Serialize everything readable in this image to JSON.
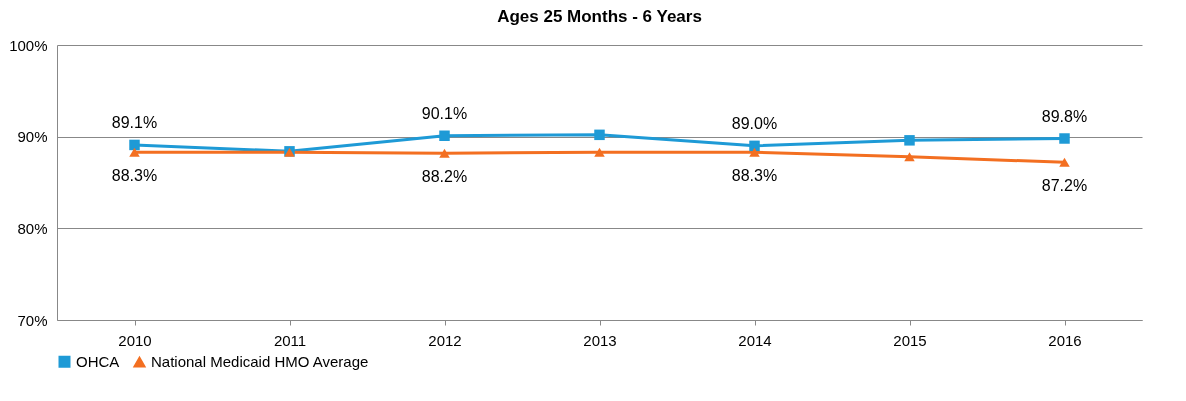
{
  "chart_data": {
    "type": "line",
    "title": "Ages 25 Months - 6 Years",
    "categories": [
      "2010",
      "2011",
      "2012",
      "2013",
      "2014",
      "2015",
      "2016"
    ],
    "series": [
      {
        "name": "OHCA",
        "color": "#1e9ad6",
        "marker": "square",
        "values": [
          89.1,
          88.4,
          90.1,
          90.2,
          89.0,
          89.6,
          89.8
        ],
        "value_labels": [
          "89.1%",
          null,
          "90.1%",
          null,
          "89.0%",
          null,
          "89.8%"
        ]
      },
      {
        "name": "National Medicaid HMO Average",
        "color": "#f36f21",
        "marker": "triangle",
        "values": [
          88.3,
          88.3,
          88.2,
          88.3,
          88.3,
          87.8,
          87.2
        ],
        "value_labels": [
          "88.3%",
          null,
          "88.2%",
          null,
          "88.3%",
          null,
          "87.2%"
        ]
      }
    ],
    "ylim": [
      70,
      100
    ],
    "yticks": [
      {
        "value": 70,
        "label": "70%"
      },
      {
        "value": 80,
        "label": "80%"
      },
      {
        "value": 90,
        "label": "90%"
      },
      {
        "value": 100,
        "label": "100%"
      }
    ],
    "grid": "y",
    "legend": "bottom",
    "line_style": "solid"
  }
}
